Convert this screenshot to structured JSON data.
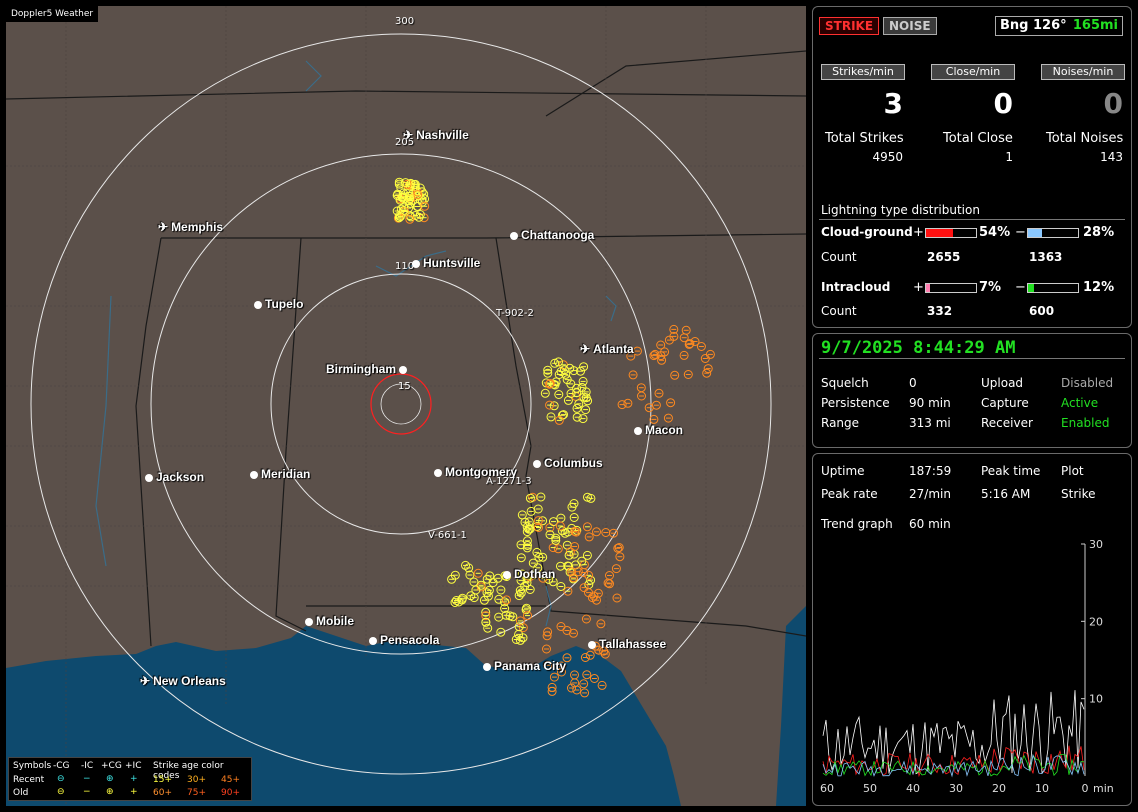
{
  "map": {
    "title": "Doppler5 Weather",
    "ring_labels": [
      "300",
      "205",
      "110",
      "15"
    ],
    "cities": [
      {
        "name": "Nashville",
        "icon": "airport-icon"
      },
      {
        "name": "Memphis",
        "icon": "airport-icon"
      },
      {
        "name": "Chattanooga",
        "icon": "city-dot"
      },
      {
        "name": "Huntsville",
        "icon": "city-dot"
      },
      {
        "name": "Tupelo",
        "icon": "city-dot"
      },
      {
        "name": "Atlanta",
        "icon": "airport-icon"
      },
      {
        "name": "Birmingham",
        "icon": "city-dot"
      },
      {
        "name": "Macon",
        "icon": "city-dot"
      },
      {
        "name": "Columbus",
        "icon": "city-dot"
      },
      {
        "name": "Montgomery",
        "icon": "city-dot"
      },
      {
        "name": "Jackson",
        "icon": "city-dot"
      },
      {
        "name": "Meridian",
        "icon": "city-dot"
      },
      {
        "name": "Dothan",
        "icon": "city-dot"
      },
      {
        "name": "Mobile",
        "icon": "city-dot"
      },
      {
        "name": "Pensacola",
        "icon": "city-dot"
      },
      {
        "name": "Tallahassee",
        "icon": "city-dot"
      },
      {
        "name": "Panama City",
        "icon": "city-dot"
      },
      {
        "name": "New Orleans",
        "icon": "airport-icon"
      }
    ],
    "tracks": [
      "T-902-2",
      "A-1271-3",
      "V-661-1"
    ]
  },
  "legend": {
    "symbols_label": "Symbols",
    "types": [
      "-CG",
      "-IC",
      "+CG",
      "+IC"
    ],
    "age_label": "Strike age color codes",
    "recent_label": "Recent",
    "old_label": "Old",
    "recent_ages": [
      "15+",
      "30+",
      "45+"
    ],
    "old_ages": [
      "60+",
      "75+",
      "90+"
    ]
  },
  "status": {
    "strike_btn": "STRIKE",
    "noise_btn": "NOISE",
    "bearing": "Bng 126°",
    "range": "165mi",
    "headers": [
      "Strikes/min",
      "Close/min",
      "Noises/min"
    ],
    "rates": [
      "3",
      "0",
      "0"
    ],
    "total_labels": [
      "Total Strikes",
      "Total Close",
      "Total Noises"
    ],
    "totals": [
      "4950",
      "1",
      "143"
    ]
  },
  "distribution": {
    "title": "Lightning type distribution",
    "cg_label": "Cloud-ground",
    "ic_label": "Intracloud",
    "count_label": "Count",
    "plus": "+",
    "minus": "−",
    "cg_pos_pct": "54%",
    "cg_pos_frac": 0.54,
    "cg_neg_pct": "28%",
    "cg_neg_frac": 0.28,
    "cg_pos_count": "2655",
    "cg_neg_count": "1363",
    "ic_pos_pct": "7%",
    "ic_pos_frac": 0.07,
    "ic_neg_pct": "12%",
    "ic_neg_frac": 0.12,
    "ic_pos_count": "332",
    "ic_neg_count": "600",
    "colors": {
      "cg_pos": "#ff1010",
      "cg_neg": "#8ac8ff",
      "ic_pos": "#ff7fb0",
      "ic_neg": "#22e022"
    }
  },
  "settings": {
    "datetime": "9/7/2025 8:44:29 AM",
    "squelch_label": "Squelch",
    "squelch": "0",
    "persistence_label": "Persistence",
    "persistence": "90 min",
    "range_label": "Range",
    "range": "313 mi",
    "upload_label": "Upload",
    "upload": "Disabled",
    "capture_label": "Capture",
    "capture": "Active",
    "receiver_label": "Receiver",
    "receiver": "Enabled"
  },
  "stats": {
    "uptime_label": "Uptime",
    "uptime": "187:59",
    "peak_time_label": "Peak time",
    "plot_label": "Plot",
    "peak_rate_label": "Peak rate",
    "peak_rate": "27/min",
    "peak_time": "5:16 AM",
    "plot": "Strike",
    "trend_label": "Trend graph",
    "trend": "60 min"
  },
  "chart_data": {
    "type": "line",
    "x_ticks": [
      "60",
      "50",
      "40",
      "30",
      "20",
      "10",
      "0"
    ],
    "x_unit": "min",
    "y_ticks": [
      "30",
      "20",
      "10"
    ],
    "ylim": [
      0,
      30
    ]
  }
}
